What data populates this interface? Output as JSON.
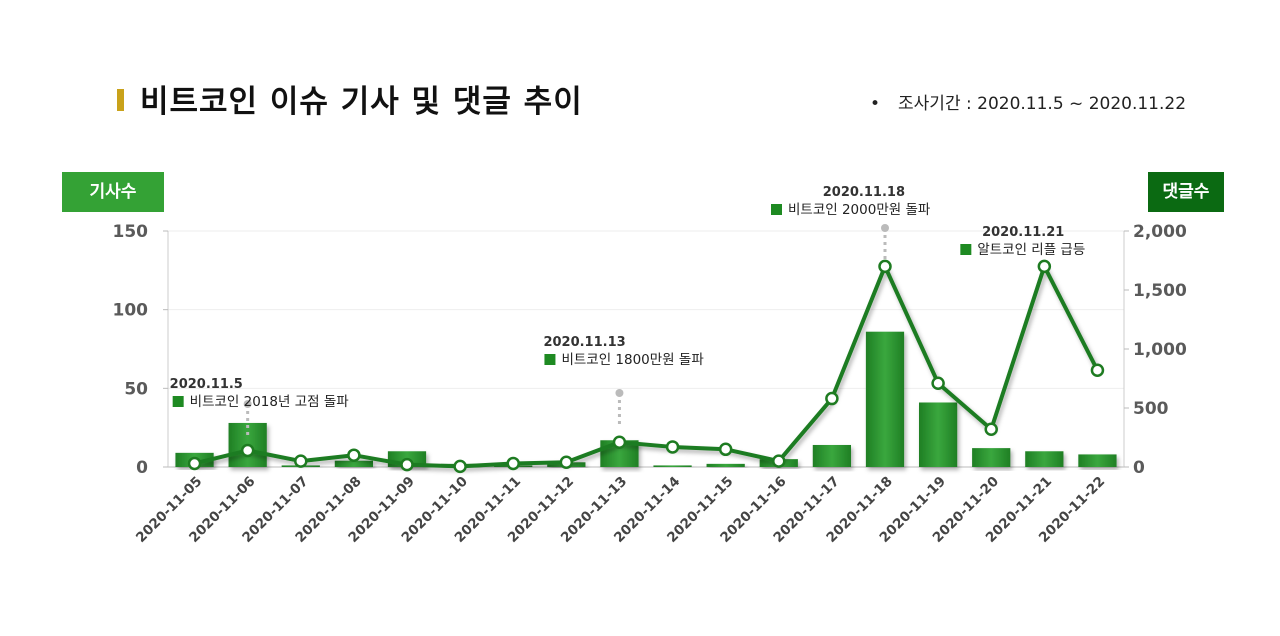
{
  "header": {
    "title": "비트코인 이슈 기사 및 댓글 추이",
    "period_bullet": "•",
    "period": "조사기간 : 2020.11.5 ~ 2020.11.22"
  },
  "colors": {
    "accent": "#c9a21a",
    "bar": "#2e9a33",
    "line": "#1e7b21",
    "left_badge": "#34a235",
    "right_badge": "#0b6a12"
  },
  "chart_data": {
    "type": "bar+line",
    "left_axis_label": "기사수",
    "right_axis_label": "댓글수",
    "categories": [
      "2020-11-05",
      "2020-11-06",
      "2020-11-07",
      "2020-11-08",
      "2020-11-09",
      "2020-11-10",
      "2020-11-11",
      "2020-11-12",
      "2020-11-13",
      "2020-11-14",
      "2020-11-15",
      "2020-11-16",
      "2020-11-17",
      "2020-11-18",
      "2020-11-19",
      "2020-11-20",
      "2020-11-21",
      "2020-11-22"
    ],
    "series": [
      {
        "type": "bar",
        "axis": "left",
        "values": [
          9,
          28,
          1,
          4,
          10,
          2,
          1,
          3,
          17,
          1,
          2,
          5,
          14,
          86,
          41,
          12,
          10,
          8
        ]
      },
      {
        "type": "line",
        "axis": "right",
        "values": [
          30,
          140,
          50,
          100,
          20,
          5,
          30,
          40,
          210,
          170,
          150,
          50,
          580,
          1700,
          710,
          320,
          1700,
          820
        ]
      }
    ],
    "left_ylim": [
      0,
      150
    ],
    "left_ticks": [
      "0",
      "50",
      "100",
      "150"
    ],
    "right_ylim": [
      0,
      2000
    ],
    "right_ticks": [
      "0",
      "500",
      "1,000",
      "1,500",
      "2,000"
    ],
    "annotations": [
      {
        "date": "2020.11.5",
        "text": "비트코인 2018년 고점 돌파",
        "category": "2020-11-06"
      },
      {
        "date": "2020.11.13",
        "text": "비트코인 1800만원 돌파",
        "category": "2020-11-13"
      },
      {
        "date": "2020.11.18",
        "text": "비트코인 2000만원 돌파",
        "category": "2020-11-18"
      },
      {
        "date": "2020.11.21",
        "text": "알트코인 리플 급등",
        "category": "2020-11-21"
      }
    ]
  }
}
